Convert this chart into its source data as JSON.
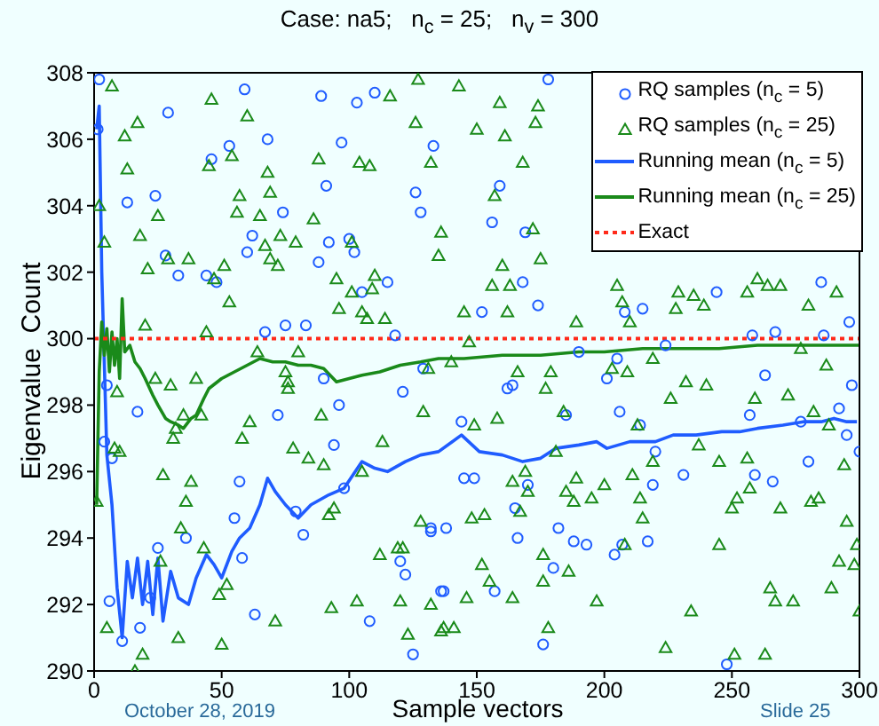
{
  "chart_data": {
    "type": "scatter",
    "title": "Case: na5;   n$_{c}$ = 25;   n$_{v}$ = 300",
    "xlabel": "Sample vectors",
    "ylabel": "Eigenvalue  Count",
    "annotations": [
      "October 28, 2019",
      "Slide 25"
    ],
    "xlim": [
      0,
      300
    ],
    "ylim": [
      290,
      308
    ],
    "xticks": [
      0,
      50,
      100,
      150,
      200,
      250,
      300
    ],
    "yticks": [
      290,
      292,
      294,
      296,
      298,
      300,
      302,
      304,
      306,
      308
    ],
    "legend": "top right",
    "series": [
      {
        "name": "RQ samples (n$_{c}$ = 5)",
        "type": "scatter",
        "marker": "circle",
        "color": "#1f5cff",
        "x": [
          2,
          1.4,
          29,
          59,
          68,
          53,
          46,
          13,
          24,
          28,
          33,
          44,
          48,
          60,
          62,
          74,
          67,
          75,
          83,
          88,
          91,
          89,
          92,
          97,
          100,
          102,
          103,
          105,
          110,
          115,
          118,
          126,
          128,
          133,
          178,
          159,
          156,
          169,
          168,
          152,
          174,
          215,
          208,
          244,
          285,
          296,
          258,
          267,
          286,
          224,
          5,
          4,
          7,
          6,
          11,
          17,
          18,
          22,
          25,
          36,
          55,
          57,
          58,
          63,
          72,
          79,
          82,
          90,
          96,
          94,
          98,
          108,
          121,
          120,
          122,
          125,
          132,
          129,
          136,
          190,
          205,
          201,
          162,
          164,
          263,
          297,
          292,
          257,
          277,
          295,
          300,
          144,
          185,
          206,
          214,
          220,
          280,
          259,
          266,
          231,
          219,
          145,
          149,
          170,
          165,
          132,
          138,
          166,
          182,
          188,
          193,
          207,
          217,
          204,
          180,
          137,
          157,
          176,
          248
        ],
        "values": [
          307.8,
          306.3,
          306.8,
          307.5,
          306,
          305.8,
          305.4,
          304.1,
          304.3,
          302.5,
          301.9,
          301.9,
          301.7,
          302.6,
          303.1,
          303.8,
          300.2,
          300.4,
          300.4,
          302.3,
          304.6,
          307.3,
          302.9,
          305.9,
          303,
          302.6,
          307.1,
          301.4,
          307.4,
          301.7,
          300.1,
          304.4,
          303.8,
          305.8,
          307.8,
          304.6,
          303.5,
          303.2,
          301.7,
          300.8,
          301,
          300.9,
          300.8,
          301.4,
          301.7,
          300.5,
          300.1,
          300.2,
          300.1,
          299.8,
          298.6,
          296.9,
          296.4,
          292.1,
          290.9,
          297.8,
          291.3,
          292.2,
          293.7,
          294,
          294.6,
          295.7,
          293.4,
          291.7,
          297.7,
          294.8,
          294.1,
          298.8,
          298,
          296.8,
          295.5,
          291.5,
          298.4,
          293.3,
          292.9,
          290.5,
          294.2,
          299.1,
          292.4,
          299.6,
          299.4,
          298.8,
          298.5,
          298.6,
          298.9,
          298.6,
          297.9,
          297.7,
          297.5,
          297.1,
          296.6,
          297.5,
          297.7,
          297.8,
          297.4,
          296.6,
          296.3,
          295.9,
          295.7,
          295.9,
          295.6,
          295.8,
          295.8,
          295.6,
          294.9,
          294.3,
          294.3,
          294,
          294.3,
          293.9,
          293.8,
          293.8,
          293.9,
          293.5,
          293.1,
          292.4,
          292.4,
          290.8,
          290.2
        ]
      },
      {
        "name": "RQ samples (n$_{c}$ = 25)",
        "type": "scatter",
        "marker": "triangle",
        "color": "#1a8a1a",
        "x": [
          7,
          2,
          4,
          12,
          17,
          13,
          25,
          18,
          21,
          29,
          37,
          20,
          46,
          60,
          45,
          54,
          57,
          56,
          65,
          68,
          69,
          51,
          53,
          47,
          67,
          69,
          72,
          73,
          79,
          86,
          88,
          95,
          96,
          101,
          104,
          108,
          110,
          109,
          105,
          107,
          114,
          116,
          126,
          127,
          132,
          101,
          44,
          143,
          159,
          174,
          173,
          150,
          161,
          168,
          157,
          172,
          136,
          135,
          160,
          175,
          156,
          163,
          145,
          162,
          189,
          205,
          207,
          210,
          229,
          235,
          239,
          228,
          256,
          260,
          264,
          269,
          280,
          291,
          147,
          1,
          5,
          9,
          8,
          10,
          16,
          19,
          24,
          30,
          27,
          26,
          34,
          33,
          31,
          32,
          35,
          36,
          38,
          40,
          42,
          43,
          49,
          50,
          52,
          61,
          58,
          64,
          80,
          75,
          76,
          76,
          71,
          78,
          84,
          89,
          90,
          92,
          94,
          93,
          103,
          105,
          112,
          113,
          119,
          121,
          120,
          123,
          128,
          129,
          132,
          136,
          140,
          131,
          166,
          179,
          177,
          203,
          209,
          219,
          232,
          240,
          226,
          259,
          272,
          287,
          277,
          282,
          288,
          184,
          158,
          149,
          213,
          237,
          181,
          219,
          245,
          256,
          294,
          169,
          211,
          189,
          200,
          164,
          170,
          185,
          188,
          195,
          214,
          257,
          252,
          250,
          269,
          281,
          284,
          167,
          153,
          148,
          215,
          295,
          245,
          208,
          299,
          176,
          292,
          298,
          152,
          186,
          155,
          176,
          289,
          265,
          146,
          164,
          197,
          267,
          274,
          234,
          300,
          137,
          141,
          178,
          224,
          251,
          263
        ],
        "values": [
          307.6,
          304,
          302.9,
          306.1,
          306.5,
          305.1,
          303.7,
          303.1,
          302.1,
          302.4,
          302.4,
          300.4,
          307.2,
          306.7,
          305.2,
          305.5,
          304.3,
          303.8,
          303.7,
          305,
          304.4,
          302.2,
          301.1,
          301.8,
          302.8,
          302.4,
          302.2,
          303.1,
          302.9,
          303.6,
          305.4,
          301.8,
          300.9,
          301.4,
          305.3,
          305.2,
          301.9,
          301.5,
          300.8,
          300.6,
          300.6,
          307.3,
          306.5,
          307.8,
          305.3,
          302.9,
          300.2,
          307.6,
          307.1,
          307,
          306.5,
          306.3,
          306.1,
          305.3,
          304.3,
          303.3,
          303.2,
          302.5,
          302.2,
          302.4,
          301.6,
          301.6,
          300.8,
          300.8,
          300.5,
          301.6,
          301.1,
          300.5,
          301.4,
          301.3,
          301,
          300.9,
          301.4,
          301.8,
          301.6,
          301.6,
          301,
          301.4,
          299.9,
          295.1,
          291.3,
          298.4,
          296.7,
          296.6,
          290,
          290.5,
          298.8,
          298.6,
          295.9,
          293.3,
          294.3,
          291,
          297,
          297.3,
          297.7,
          295.1,
          295.7,
          298.8,
          297.7,
          293.7,
          292.3,
          290.8,
          292.6,
          297.5,
          297,
          299.6,
          299.6,
          299,
          298.7,
          298.5,
          291.5,
          296.7,
          296.4,
          297.7,
          296.2,
          294.7,
          294.9,
          291.9,
          292.1,
          296,
          293.5,
          296.9,
          293.7,
          293.7,
          292.1,
          291.1,
          294.5,
          297.8,
          292,
          291.2,
          299.3,
          299.1,
          299,
          299,
          298.5,
          299.1,
          299,
          299.4,
          298.7,
          298.6,
          298.2,
          298.2,
          298.3,
          299.2,
          299.7,
          297.8,
          297.4,
          297.8,
          297.6,
          297.4,
          297.4,
          296.8,
          296.6,
          296.3,
          296.3,
          296.4,
          296.2,
          296,
          295.9,
          295.8,
          295.6,
          295.7,
          295.4,
          295.4,
          295.1,
          295.2,
          295.2,
          295.5,
          295.2,
          294.9,
          294.9,
          295.1,
          295.2,
          294.8,
          294.7,
          294.6,
          294.6,
          294.5,
          293.8,
          293.8,
          293.8,
          293.5,
          293.3,
          293.2,
          293.2,
          293,
          292.7,
          292.7,
          292.5,
          292.5,
          292.2,
          292.2,
          292.1,
          292.1,
          292.1,
          291.8,
          291.8,
          291.3,
          291.3,
          291.3,
          290.7,
          290.5,
          290.5
        ]
      },
      {
        "name": "Running mean (n$_{c}$ = 5)",
        "type": "line",
        "marker": "none",
        "line_style": "solid",
        "color": "#1f5cff",
        "x": [
          1,
          2,
          3,
          5,
          7,
          9,
          11,
          13,
          15,
          17,
          19,
          21,
          23,
          25,
          27,
          30,
          33,
          37,
          40,
          44,
          47,
          50,
          54,
          57,
          61,
          65,
          68,
          71,
          75,
          80,
          85,
          92,
          98,
          105,
          110,
          115,
          122,
          128,
          135,
          144,
          151,
          160,
          168,
          175,
          181,
          190,
          197,
          201,
          210,
          220,
          227,
          236,
          246,
          253,
          260,
          270,
          278,
          285,
          290,
          295,
          299
        ],
        "values": [
          306.3,
          307,
          302,
          296.5,
          295,
          292.5,
          291,
          293.3,
          292.2,
          293.4,
          292,
          293.3,
          291.7,
          293.4,
          291.5,
          293,
          292.2,
          292,
          292.8,
          293.5,
          293.2,
          292.8,
          293.6,
          294,
          294.3,
          295,
          295.8,
          295.4,
          295,
          294.6,
          295,
          295.3,
          295.5,
          296.3,
          296.1,
          296,
          296.3,
          296.5,
          296.6,
          297.1,
          296.6,
          296.5,
          296.3,
          296.4,
          296.7,
          296.8,
          296.9,
          296.7,
          296.9,
          296.9,
          297.1,
          297.1,
          297.2,
          297.2,
          297.3,
          297.4,
          297.5,
          297.5,
          297.6,
          297.5,
          297.5
        ]
      },
      {
        "name": "Running mean (n$_{c}$ = 25)",
        "type": "line",
        "marker": "none",
        "line_style": "solid",
        "color": "#1a8a1a",
        "x": [
          1,
          2,
          3,
          4,
          5,
          6,
          7,
          8,
          9,
          10,
          11,
          12,
          14,
          16,
          18,
          20,
          23,
          25,
          28,
          30,
          33,
          35,
          38,
          40,
          43,
          45,
          50,
          55,
          60,
          65,
          70,
          75,
          80,
          85,
          90,
          95,
          100,
          105,
          112,
          120,
          128,
          135,
          145,
          160,
          175,
          190,
          200,
          215,
          230,
          245,
          260,
          275,
          290,
          300
        ],
        "values": [
          295,
          299,
          300.5,
          299.5,
          300.3,
          299,
          300.2,
          299.2,
          300,
          298.8,
          301.2,
          299.6,
          299.8,
          299.3,
          299.1,
          298.8,
          298.3,
          298,
          297.6,
          297.5,
          297.4,
          297.3,
          297.6,
          297.7,
          298.2,
          298.5,
          298.8,
          299,
          299.2,
          299.4,
          299.3,
          299.3,
          299.2,
          299.2,
          299.1,
          298.7,
          298.8,
          298.9,
          299,
          299.2,
          299.3,
          299.4,
          299.4,
          299.5,
          299.5,
          299.6,
          299.6,
          299.7,
          299.7,
          299.7,
          299.8,
          299.8,
          299.8,
          299.8
        ]
      },
      {
        "name": "Exact",
        "type": "line",
        "marker": "none",
        "line_style": "dotted",
        "color": "#ff2a1a",
        "x": [
          0,
          300
        ],
        "values": [
          300,
          300
        ]
      }
    ]
  }
}
